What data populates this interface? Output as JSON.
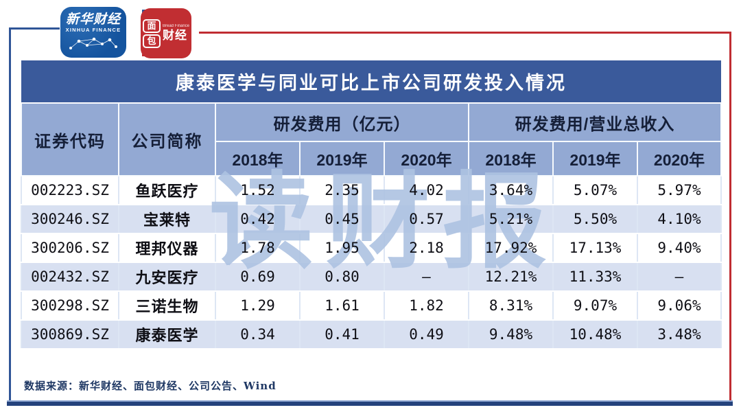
{
  "logos": {
    "xinhua": {
      "cn": "新华财经",
      "en": "XINHUA FINANCE"
    },
    "bread": {
      "char1": "面",
      "char2": "包",
      "en": "Bread Finance",
      "cn": "财经"
    }
  },
  "watermark": {
    "text": "读财报"
  },
  "table": {
    "title": "康泰医学与同业可比上市公司研发投入情况",
    "headers": {
      "code": "证券代码",
      "name": "公司简称",
      "group_fee": "研发费用（亿元）",
      "group_ratio": "研发费用/营业总收入",
      "years": [
        "2018年",
        "2019年",
        "2020年"
      ]
    },
    "rows": [
      {
        "code": "002223.SZ",
        "name": "鱼跃医疗",
        "fee": [
          "1.52",
          "2.35",
          "4.02"
        ],
        "ratio": [
          "3.64%",
          "5.07%",
          "5.97%"
        ]
      },
      {
        "code": "300246.SZ",
        "name": "宝莱特",
        "fee": [
          "0.42",
          "0.45",
          "0.57"
        ],
        "ratio": [
          "5.21%",
          "5.50%",
          "4.10%"
        ]
      },
      {
        "code": "300206.SZ",
        "name": "理邦仪器",
        "fee": [
          "1.78",
          "1.95",
          "2.18"
        ],
        "ratio": [
          "17.92%",
          "17.13%",
          "9.40%"
        ]
      },
      {
        "code": "002432.SZ",
        "name": "九安医疗",
        "fee": [
          "0.69",
          "0.80",
          "–"
        ],
        "ratio": [
          "12.21%",
          "11.33%",
          "–"
        ]
      },
      {
        "code": "300298.SZ",
        "name": "三诺生物",
        "fee": [
          "1.29",
          "1.61",
          "1.82"
        ],
        "ratio": [
          "8.31%",
          "9.07%",
          "9.06%"
        ]
      },
      {
        "code": "300869.SZ",
        "name": "康泰医学",
        "fee": [
          "0.34",
          "0.41",
          "0.49"
        ],
        "ratio": [
          "9.48%",
          "10.48%",
          "3.48%"
        ]
      }
    ],
    "source": "数据来源：新华财经、面包财经、公司公告、Wind"
  },
  "colors": {
    "title_bar": "#3A5A9B",
    "header_bg": "#93A9D3",
    "alt_row_bg": "#D8E0F1",
    "watermark": "#ADC2E1",
    "frame_blue": "#2F5597",
    "frame_red": "#C02D32",
    "bottom_bar": "#24427C",
    "source_text": "#1F3864"
  },
  "chart_data": {
    "type": "table",
    "title": "康泰医学与同业可比上市公司研发投入情况",
    "column_groups": [
      "研发费用（亿元）",
      "研发费用/营业总收入"
    ],
    "columns": [
      "证券代码",
      "公司简称",
      "研发费用2018年",
      "研发费用2019年",
      "研发费用2020年",
      "研发费用/营业总收入2018年",
      "研发费用/营业总收入2019年",
      "研发费用/营业总收入2020年"
    ],
    "rows": [
      [
        "002223.SZ",
        "鱼跃医疗",
        1.52,
        2.35,
        4.02,
        "3.64%",
        "5.07%",
        "5.97%"
      ],
      [
        "300246.SZ",
        "宝莱特",
        0.42,
        0.45,
        0.57,
        "5.21%",
        "5.50%",
        "4.10%"
      ],
      [
        "300206.SZ",
        "理邦仪器",
        1.78,
        1.95,
        2.18,
        "17.92%",
        "17.13%",
        "9.40%"
      ],
      [
        "002432.SZ",
        "九安医疗",
        0.69,
        0.8,
        null,
        "12.21%",
        "11.33%",
        null
      ],
      [
        "300298.SZ",
        "三诺生物",
        1.29,
        1.61,
        1.82,
        "8.31%",
        "9.07%",
        "9.06%"
      ],
      [
        "300869.SZ",
        "康泰医学",
        0.34,
        0.41,
        0.49,
        "9.48%",
        "10.48%",
        "3.48%"
      ]
    ],
    "source": "数据来源：新华财经、面包财经、公司公告、Wind"
  }
}
